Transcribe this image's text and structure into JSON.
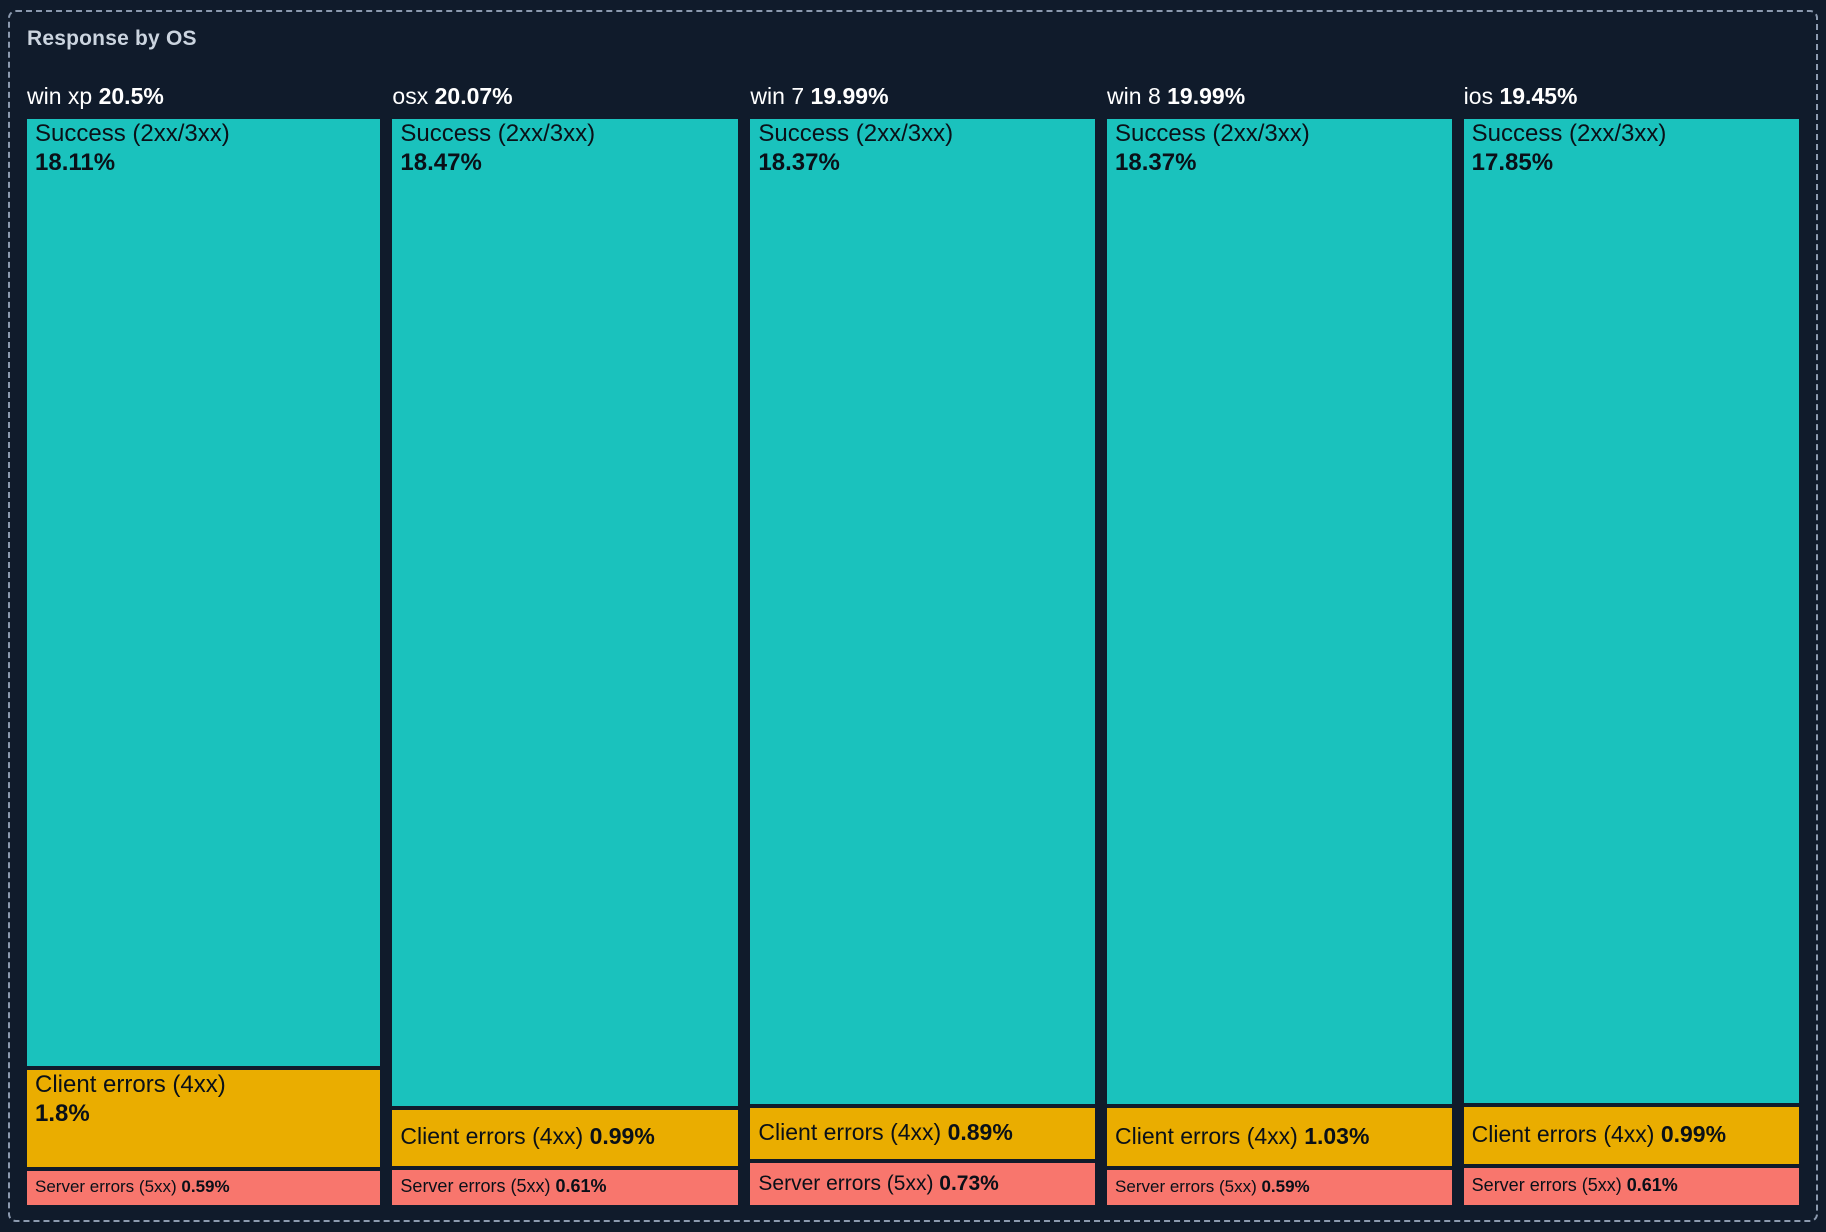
{
  "panel": {
    "title": "Response by OS"
  },
  "chart_data": {
    "type": "treemap",
    "title": "Response by OS",
    "value_unit": "percent",
    "legend": false,
    "layout": "one column per OS group, vertical stacked segments sized proportionally to values",
    "segment_names": [
      "Success (2xx/3xx)",
      "Client errors (4xx)",
      "Server errors (5xx)"
    ],
    "groups": [
      {
        "os": "win xp",
        "os_share": 20.5,
        "os_share_display": "20.5%",
        "segments": [
          {
            "label": "Success (2xx/3xx)",
            "kind": "success",
            "value": 18.11,
            "display": "18.11%"
          },
          {
            "label": "Client errors (4xx)",
            "kind": "client",
            "value": 1.8,
            "display": "1.8%"
          },
          {
            "label": "Server errors (5xx)",
            "kind": "server",
            "value": 0.59,
            "display": "0.59%"
          }
        ]
      },
      {
        "os": "osx",
        "os_share": 20.07,
        "os_share_display": "20.07%",
        "segments": [
          {
            "label": "Success (2xx/3xx)",
            "kind": "success",
            "value": 18.47,
            "display": "18.47%"
          },
          {
            "label": "Client errors (4xx)",
            "kind": "client",
            "value": 0.99,
            "display": "0.99%"
          },
          {
            "label": "Server errors (5xx)",
            "kind": "server",
            "value": 0.61,
            "display": "0.61%"
          }
        ]
      },
      {
        "os": "win 7",
        "os_share": 19.99,
        "os_share_display": "19.99%",
        "segments": [
          {
            "label": "Success (2xx/3xx)",
            "kind": "success",
            "value": 18.37,
            "display": "18.37%"
          },
          {
            "label": "Client errors (4xx)",
            "kind": "client",
            "value": 0.89,
            "display": "0.89%"
          },
          {
            "label": "Server errors (5xx)",
            "kind": "server",
            "value": 0.73,
            "display": "0.73%"
          }
        ]
      },
      {
        "os": "win 8",
        "os_share": 19.99,
        "os_share_display": "19.99%",
        "segments": [
          {
            "label": "Success (2xx/3xx)",
            "kind": "success",
            "value": 18.37,
            "display": "18.37%"
          },
          {
            "label": "Client errors (4xx)",
            "kind": "client",
            "value": 1.03,
            "display": "1.03%"
          },
          {
            "label": "Server errors (5xx)",
            "kind": "server",
            "value": 0.59,
            "display": "0.59%"
          }
        ]
      },
      {
        "os": "ios",
        "os_share": 19.45,
        "os_share_display": "19.45%",
        "segments": [
          {
            "label": "Success (2xx/3xx)",
            "kind": "success",
            "value": 17.85,
            "display": "17.85%"
          },
          {
            "label": "Client errors (4xx)",
            "kind": "client",
            "value": 0.99,
            "display": "0.99%"
          },
          {
            "label": "Server errors (5xx)",
            "kind": "server",
            "value": 0.61,
            "display": "0.61%"
          }
        ]
      }
    ],
    "colors": {
      "background": "#101B2B",
      "panel_border": "#8C9AAF",
      "title_text": "#CBD4DF",
      "header_text": "#FFFFFF",
      "block_text": "#0A1018",
      "success": "#1AC2BD",
      "client": "#EAAD00",
      "server": "#F8766D"
    }
  }
}
